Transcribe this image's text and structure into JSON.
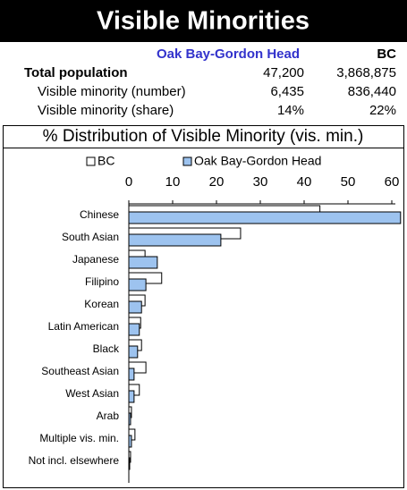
{
  "header": {
    "title": "Visible Minorities"
  },
  "table": {
    "headers": [
      "Oak Bay-Gordon Head",
      "BC"
    ],
    "rows": [
      {
        "label": "Total population",
        "values": [
          "47,200",
          "3,868,875"
        ]
      },
      {
        "label": "Visible minority (number)",
        "values": [
          "6,435",
          "836,440"
        ]
      },
      {
        "label": "Visible minority (share)",
        "values": [
          "14%",
          "22%"
        ]
      }
    ]
  },
  "chart_data": {
    "type": "bar",
    "orientation": "horizontal",
    "title": "% Distribution of Visible Minority (vis. min.)",
    "categories": [
      "Chinese",
      "South Asian",
      "Japanese",
      "Filipino",
      "Korean",
      "Latin American",
      "Black",
      "Southeast Asian",
      "West Asian",
      "Arab",
      "Multiple vis. min.",
      "Not incl. elsewhere"
    ],
    "series": [
      {
        "name": "BC",
        "color": "#ffffff",
        "values": [
          43.6,
          25.5,
          3.7,
          7.5,
          3.7,
          2.7,
          2.9,
          3.9,
          2.4,
          0.6,
          1.4,
          0.4
        ]
      },
      {
        "name": "Oak Bay-Gordon Head",
        "color": "#9dc3ef",
        "values": [
          62,
          21,
          6.5,
          3.9,
          2.9,
          2.4,
          2,
          1.2,
          1.2,
          0.4,
          0.6,
          0.2
        ]
      }
    ],
    "xlim": [
      0,
      60
    ],
    "xticks": [
      0,
      10,
      20,
      30,
      40,
      50,
      60
    ],
    "legend": "top"
  }
}
